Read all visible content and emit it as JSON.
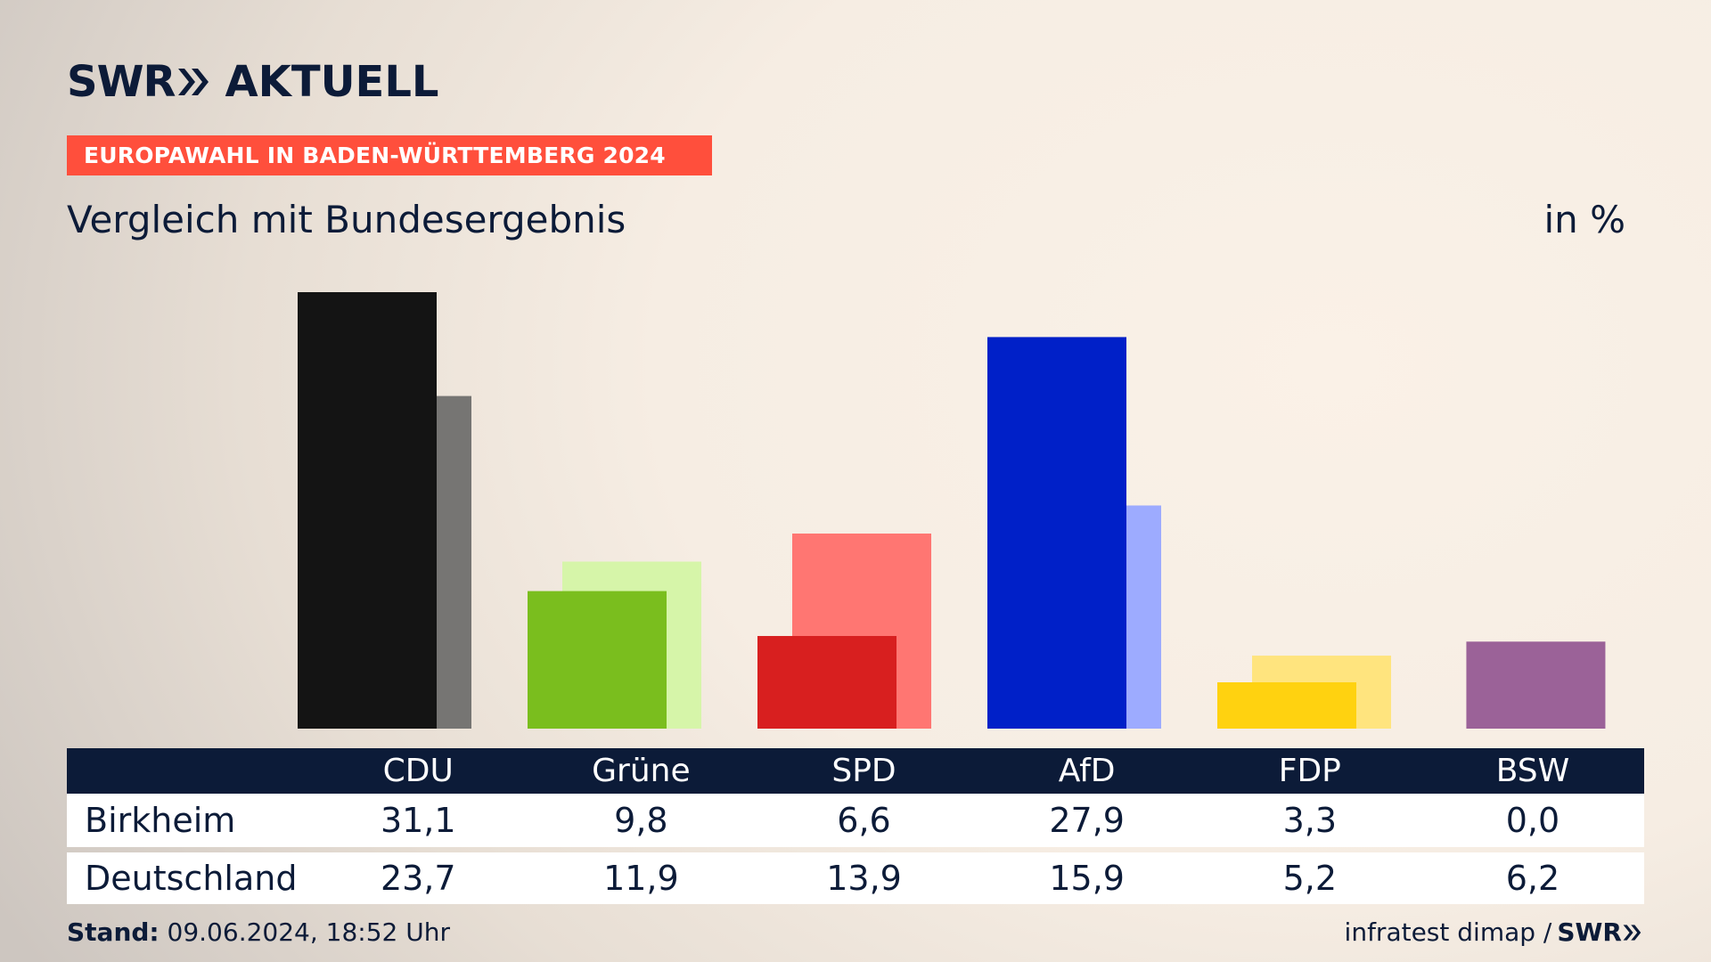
{
  "brand": {
    "logo_swr": "SWR",
    "logo_aktuell": "AKTUELL"
  },
  "banner": "EUROPAWAHL IN BADEN-WÜRTTEMBERG 2024",
  "subtitle": "Vergleich mit Bundesergebnis",
  "unit": "in %",
  "chart_data": {
    "type": "bar",
    "categories": [
      "CDU",
      "Grüne",
      "SPD",
      "AfD",
      "FDP",
      "BSW"
    ],
    "series": [
      {
        "name": "Birkheim",
        "values": [
          31.1,
          9.8,
          6.6,
          27.9,
          3.3,
          0.0
        ],
        "colors": [
          "#141414",
          "#7abe1e",
          "#d81f1f",
          "#0020c8",
          "#ffd210",
          "#9b6298"
        ]
      },
      {
        "name": "Deutschland",
        "values": [
          23.7,
          11.9,
          13.9,
          15.9,
          5.2,
          6.2
        ],
        "colors": [
          "#767573",
          "#d6f5a9",
          "#ff7672",
          "#9dabff",
          "#ffe47e",
          "#9b6298"
        ]
      }
    ],
    "ylim": [
      0,
      31.1
    ],
    "grid": false,
    "legend": "table"
  },
  "table": {
    "rows": [
      {
        "label": "Birkheim",
        "values": [
          "31,1",
          "9,8",
          "6,6",
          "27,9",
          "3,3",
          "0,0"
        ]
      },
      {
        "label": "Deutschland",
        "values": [
          "23,7",
          "11,9",
          "13,9",
          "15,9",
          "5,2",
          "6,2"
        ]
      }
    ]
  },
  "footer": {
    "stand_label": "Stand:",
    "stand_value": "09.06.2024, 18:52 Uhr",
    "source": "infratest dimap /",
    "source_brand": "SWR"
  }
}
